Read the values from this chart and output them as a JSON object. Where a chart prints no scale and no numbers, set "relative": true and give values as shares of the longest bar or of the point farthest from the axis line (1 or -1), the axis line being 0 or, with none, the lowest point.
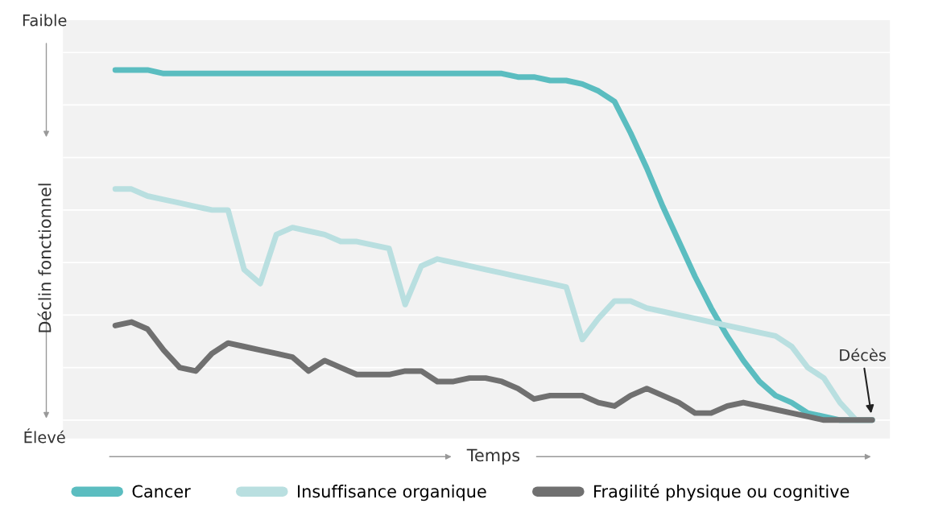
{
  "chart_data": {
    "type": "line",
    "relative": true,
    "xlabel": "Temps",
    "ylabel": "Déclin fonctionnel",
    "categories": [
      null,
      null,
      null,
      null,
      null,
      null,
      null,
      null,
      null,
      null,
      null,
      null,
      null,
      null,
      null,
      null,
      null,
      null,
      null,
      null,
      null,
      null,
      null,
      null,
      null,
      null,
      null,
      null,
      null,
      null,
      null,
      null,
      null,
      null,
      null,
      null,
      null,
      null,
      null,
      null,
      null,
      null,
      null,
      null,
      null,
      null,
      null,
      null
    ],
    "series": [
      {
        "name": "Cancer",
        "color": "#5bbdc0",
        "values": [
          1.0,
          1.0,
          1.0,
          0.99,
          0.99,
          0.99,
          0.99,
          0.99,
          0.99,
          0.99,
          0.99,
          0.99,
          0.99,
          0.99,
          0.99,
          0.99,
          0.99,
          0.99,
          0.99,
          0.99,
          0.99,
          0.99,
          0.99,
          0.99,
          0.99,
          0.98,
          0.98,
          0.97,
          0.97,
          0.96,
          0.94,
          0.91,
          0.82,
          0.72,
          0.61,
          0.51,
          0.41,
          0.32,
          0.24,
          0.17,
          0.11,
          0.07,
          0.05,
          0.02,
          0.01,
          0,
          0,
          0
        ]
      },
      {
        "name": "Insuffisance organique",
        "color": "#b9dfe0",
        "values": [
          0.66,
          0.66,
          0.64,
          0.63,
          0.62,
          0.61,
          0.6,
          0.6,
          0.43,
          0.39,
          0.53,
          0.55,
          0.54,
          0.53,
          0.51,
          0.51,
          0.5,
          0.49,
          0.33,
          0.44,
          0.46,
          0.45,
          0.44,
          0.43,
          0.42,
          0.41,
          0.4,
          0.39,
          0.38,
          0.23,
          0.29,
          0.34,
          0.34,
          0.32,
          0.31,
          0.3,
          0.29,
          0.28,
          0.27,
          0.26,
          0.25,
          0.24,
          0.21,
          0.15,
          0.12,
          0.05,
          0,
          0
        ]
      },
      {
        "name": "Fragilité physique ou cognitive",
        "color": "#707070",
        "values": [
          0.27,
          0.28,
          0.26,
          0.2,
          0.15,
          0.14,
          0.19,
          0.22,
          0.21,
          0.2,
          0.19,
          0.18,
          0.14,
          0.17,
          0.15,
          0.13,
          0.13,
          0.13,
          0.14,
          0.14,
          0.11,
          0.11,
          0.12,
          0.12,
          0.11,
          0.09,
          0.06,
          0.07,
          0.07,
          0.07,
          0.05,
          0.04,
          0.07,
          0.09,
          0.07,
          0.05,
          0.02,
          0.02,
          0.04,
          0.05,
          0.04,
          0.03,
          0.02,
          0.01,
          0,
          0,
          0,
          0
        ]
      }
    ],
    "annotations": [
      "Faible",
      "Élevé",
      "Décès"
    ],
    "grid": "y",
    "legend": "bottom",
    "marker": "none",
    "line_style": "solid"
  }
}
